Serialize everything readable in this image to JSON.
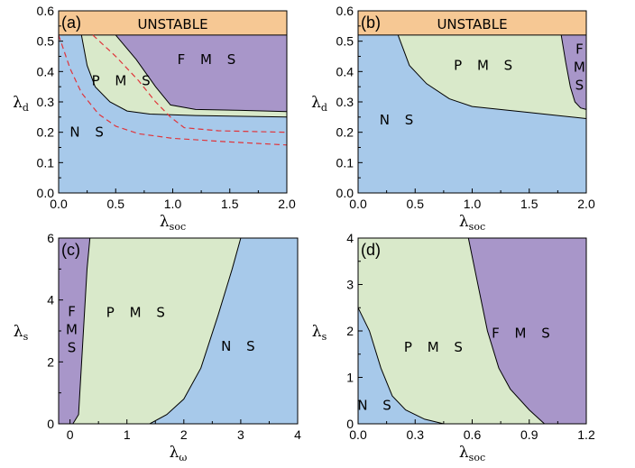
{
  "colors": {
    "NS": "#a7c9ea",
    "PMS": "#d9e9ca",
    "FMS": "#a896c9",
    "UNSTABLE": "#f6c894",
    "dashed": "#e0343a"
  },
  "chart_data": [
    {
      "type": "area",
      "panel_label": "(a)",
      "xlabel_main": "λ",
      "xlabel_sub": "soc",
      "ylabel_main": "λ",
      "ylabel_sub": "d",
      "xlim": [
        0.0,
        2.0
      ],
      "ylim": [
        0.0,
        0.6
      ],
      "xticks": [
        "0.0",
        "0.5",
        "1.0",
        "1.5",
        "2.0"
      ],
      "yticks": [
        "0.0",
        "0.1",
        "0.2",
        "0.3",
        "0.4",
        "0.5",
        "0.6"
      ],
      "unstable_above": 0.52,
      "regions": [
        {
          "name": "NS",
          "label": "N S",
          "at": [
            0.27,
            0.2
          ]
        },
        {
          "name": "PMS",
          "label": "P M S",
          "at": [
            0.57,
            0.37
          ]
        },
        {
          "name": "FMS",
          "label": "F M S",
          "at": [
            1.32,
            0.44
          ]
        },
        {
          "name": "UNSTABLE",
          "label": "UNSTABLE",
          "at": [
            1.0,
            0.555
          ]
        }
      ],
      "boundaries": {
        "NS_PMS": [
          [
            0.2,
            0.52
          ],
          [
            0.25,
            0.42
          ],
          [
            0.32,
            0.35
          ],
          [
            0.45,
            0.3
          ],
          [
            0.6,
            0.27
          ],
          [
            0.8,
            0.26
          ],
          [
            1.2,
            0.255
          ],
          [
            2.0,
            0.25
          ]
        ],
        "PMS_FMS": [
          [
            0.5,
            0.52
          ],
          [
            0.68,
            0.44
          ],
          [
            0.85,
            0.35
          ],
          [
            0.98,
            0.29
          ],
          [
            1.2,
            0.275
          ],
          [
            1.6,
            0.272
          ],
          [
            2.0,
            0.268
          ]
        ]
      },
      "dashed": [
        [
          [
            0.0,
            0.52
          ],
          [
            0.1,
            0.41
          ],
          [
            0.2,
            0.33
          ],
          [
            0.35,
            0.26
          ],
          [
            0.5,
            0.22
          ],
          [
            0.7,
            0.195
          ],
          [
            1.0,
            0.18
          ],
          [
            1.5,
            0.168
          ],
          [
            2.0,
            0.158
          ]
        ],
        [
          [
            0.3,
            0.52
          ],
          [
            0.5,
            0.45
          ],
          [
            0.7,
            0.37
          ],
          [
            0.85,
            0.3
          ],
          [
            0.98,
            0.25
          ],
          [
            1.1,
            0.215
          ],
          [
            1.4,
            0.205
          ],
          [
            2.0,
            0.2
          ]
        ]
      ]
    },
    {
      "type": "area",
      "panel_label": "(b)",
      "xlabel_main": "λ",
      "xlabel_sub": "soc",
      "ylabel_main": "λ",
      "ylabel_sub": "d",
      "xlim": [
        0.0,
        2.0
      ],
      "ylim": [
        0.0,
        0.6
      ],
      "xticks": [
        "0.0",
        "0.5",
        "1.0",
        "1.5",
        "2.0"
      ],
      "yticks": [
        "0.0",
        "0.1",
        "0.2",
        "0.3",
        "0.4",
        "0.5",
        "0.6"
      ],
      "unstable_above": 0.52,
      "regions": [
        {
          "name": "NS",
          "label": "N S",
          "at": [
            0.36,
            0.24
          ]
        },
        {
          "name": "PMS",
          "label": "P M S",
          "at": [
            1.12,
            0.42
          ]
        },
        {
          "name": "FMS",
          "label": "F M S",
          "at": [
            1.94,
            0.4
          ],
          "vertical": true
        },
        {
          "name": "UNSTABLE",
          "label": "UNSTABLE",
          "at": [
            1.0,
            0.555
          ]
        }
      ],
      "boundaries": {
        "NS_PMS": [
          [
            0.35,
            0.52
          ],
          [
            0.45,
            0.42
          ],
          [
            0.6,
            0.36
          ],
          [
            0.8,
            0.31
          ],
          [
            1.0,
            0.285
          ],
          [
            1.5,
            0.265
          ],
          [
            2.0,
            0.245
          ]
        ],
        "PMS_FMS": [
          [
            1.78,
            0.52
          ],
          [
            1.82,
            0.43
          ],
          [
            1.86,
            0.35
          ],
          [
            1.9,
            0.3
          ],
          [
            1.95,
            0.28
          ],
          [
            2.0,
            0.275
          ]
        ]
      }
    },
    {
      "type": "area",
      "panel_label": "(c)",
      "xlabel_main": "λ",
      "xlabel_sub": "ω",
      "ylabel_main": "λ",
      "ylabel_sub": "s",
      "xlim": [
        -0.2,
        4.0
      ],
      "ylim": [
        0,
        6
      ],
      "xticks": [
        "0",
        "1",
        "2",
        "3",
        "4"
      ],
      "yticks": [
        "0",
        "2",
        "4",
        "6"
      ],
      "regions": [
        {
          "name": "FMS",
          "label": "F M S",
          "at": [
            0.03,
            2.9
          ],
          "vertical": true
        },
        {
          "name": "PMS",
          "label": "P M S",
          "at": [
            1.2,
            3.6
          ]
        },
        {
          "name": "NS",
          "label": "N S",
          "at": [
            3.0,
            2.5
          ]
        }
      ],
      "boundaries": {
        "FMS_PMS": [
          [
            0.05,
            0.0
          ],
          [
            0.15,
            0.3
          ],
          [
            0.22,
            2.5
          ],
          [
            0.3,
            5.0
          ],
          [
            0.35,
            6.0
          ]
        ],
        "PMS_NS": [
          [
            1.4,
            0.0
          ],
          [
            1.7,
            0.3
          ],
          [
            2.0,
            0.8
          ],
          [
            2.3,
            1.8
          ],
          [
            2.6,
            3.5
          ],
          [
            2.85,
            5.0
          ],
          [
            3.0,
            6.0
          ]
        ]
      }
    },
    {
      "type": "area",
      "panel_label": "(d)",
      "xlabel_main": "λ",
      "xlabel_sub": "soc",
      "ylabel_main": "λ",
      "ylabel_sub": "s",
      "xlim": [
        0.0,
        1.2
      ],
      "ylim": [
        0,
        4
      ],
      "xticks": [
        "0.0",
        "0.3",
        "0.6",
        "0.9",
        "1.2"
      ],
      "yticks": [
        "0",
        "1",
        "2",
        "3",
        "4"
      ],
      "regions": [
        {
          "name": "NS",
          "label": "N S",
          "at": [
            0.1,
            0.4
          ]
        },
        {
          "name": "PMS",
          "label": "P M S",
          "at": [
            0.41,
            1.65
          ]
        },
        {
          "name": "FMS",
          "label": "F M S",
          "at": [
            0.87,
            1.95
          ]
        }
      ],
      "boundaries": {
        "NS_PMS": [
          [
            0.0,
            2.5
          ],
          [
            0.06,
            2.0
          ],
          [
            0.12,
            1.2
          ],
          [
            0.18,
            0.6
          ],
          [
            0.25,
            0.3
          ],
          [
            0.35,
            0.1
          ],
          [
            0.45,
            0.0
          ]
        ],
        "PMS_FMS": [
          [
            0.58,
            4.0
          ],
          [
            0.62,
            3.2
          ],
          [
            0.68,
            2.0
          ],
          [
            0.74,
            1.2
          ],
          [
            0.8,
            0.75
          ],
          [
            0.9,
            0.3
          ],
          [
            0.98,
            0.0
          ]
        ]
      }
    }
  ]
}
